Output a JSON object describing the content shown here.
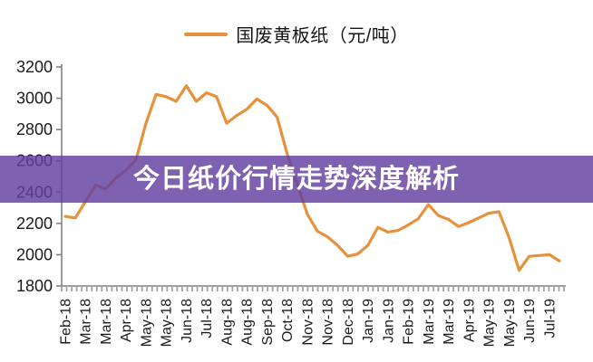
{
  "legend": {
    "label": "国废黄板纸（元/吨）"
  },
  "banner": {
    "title": "今日纸价行情走势深度解析"
  },
  "colors": {
    "line": "#E8913C",
    "banner_overlay": "rgba(98,63,160,0.82)",
    "banner_text": "#ffffff",
    "axis": "#808080",
    "minor_tick": "#a3a3a3",
    "label": "#1a1a1a"
  },
  "chart_data": {
    "type": "line",
    "title": "",
    "xlabel": "",
    "ylabel": "",
    "grid": false,
    "legend_position": "top-center",
    "y_axis": {
      "min": 1800,
      "max": 3200,
      "step": 200
    },
    "x_tick_labels": [
      "Feb-18",
      "Mar-18",
      "Mar-18",
      "Apr-18",
      "May-18",
      "May-18",
      "Jun-18",
      "Jul-18",
      "Aug-18",
      "Aug-18",
      "Sep-18",
      "Oct-18",
      "Nov-18",
      "Nov-18",
      "Dec-18",
      "Jan-19",
      "Jan-19",
      "Feb-19",
      "Mar-19",
      "Mar-19",
      "Apr-19",
      "May-19",
      "May-19",
      "Jun-19",
      "Jul-19"
    ],
    "label_every_n_points": 2,
    "series": [
      {
        "name": "国废黄板纸（元/吨）",
        "values": [
          2245,
          2235,
          2340,
          2445,
          2420,
          2490,
          2540,
          2605,
          2840,
          3025,
          3010,
          2980,
          3080,
          2980,
          3035,
          3010,
          2840,
          2890,
          2930,
          2995,
          2955,
          2880,
          2645,
          2450,
          2260,
          2150,
          2115,
          2060,
          1990,
          2005,
          2060,
          2175,
          2145,
          2155,
          2190,
          2230,
          2320,
          2250,
          2225,
          2180,
          2205,
          2235,
          2265,
          2275,
          2110,
          1900,
          1990,
          1995,
          2000,
          1960
        ]
      }
    ]
  }
}
